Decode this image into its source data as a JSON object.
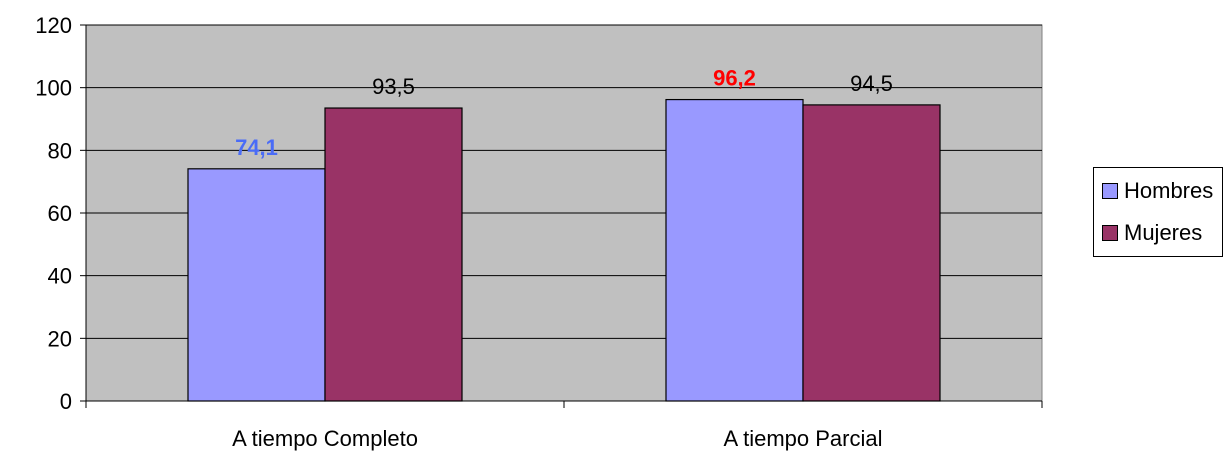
{
  "chart_data": {
    "type": "bar",
    "categories": [
      "A tiempo Completo",
      "A tiempo Parcial"
    ],
    "series": [
      {
        "name": "Hombres",
        "values": [
          74.1,
          96.2
        ],
        "color": "#9999ff"
      },
      {
        "name": "Mujeres",
        "values": [
          93.5,
          94.5
        ],
        "color": "#993366"
      }
    ],
    "data_labels": [
      [
        "74,1",
        "96,2"
      ],
      [
        "93,5",
        "94,5"
      ]
    ],
    "data_label_colors": [
      [
        "#4a6cf7",
        "#ff0000"
      ],
      [
        "#000000",
        "#000000"
      ]
    ],
    "data_label_bold": [
      [
        true,
        true
      ],
      [
        false,
        false
      ]
    ],
    "y_ticks": [
      "0",
      "20",
      "40",
      "60",
      "80",
      "100",
      "120"
    ],
    "ylim": [
      0,
      120
    ],
    "grid": true,
    "plot_background": "#c0c0c0",
    "legend_position": "right"
  }
}
